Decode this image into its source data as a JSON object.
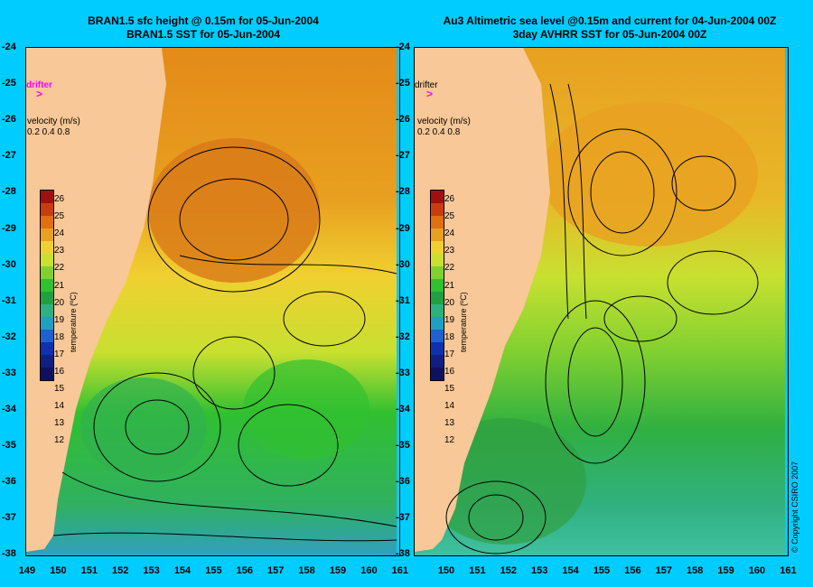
{
  "left_panel": {
    "title_line1": "BRAN1.5 sfc height @ 0.15m for 05-Jun-2004",
    "title_line2": "BRAN1.5 SST for 05-Jun-2004"
  },
  "right_panel": {
    "title_line1": "Au3 Altimetric sea level  @0.15m and current for 04-Jun-2004 00Z",
    "title_line2": "3day AVHRR SST for 05-Jun-2004 00Z"
  },
  "legend": {
    "drifter_label": "drifter",
    "velocity_label": "velocity (m/s)",
    "velocity_values": "0.2 0.4 0.8"
  },
  "colorbar": {
    "unit_label": "temperature (ºC)",
    "ticks": [
      "26",
      "25",
      "24",
      "23",
      "22",
      "21",
      "20",
      "19",
      "18",
      "17",
      "16",
      "15",
      "14",
      "13",
      "12"
    ],
    "colors": [
      "#a01010",
      "#c83c10",
      "#e07010",
      "#e8a020",
      "#f0d030",
      "#c8e030",
      "#80d030",
      "#30c030",
      "#20a040",
      "#30b080",
      "#20a0c0",
      "#2060d0",
      "#1030b0",
      "#102080",
      "#101060"
    ]
  },
  "y_axis": [
    "-24",
    "-25",
    "-26",
    "-27",
    "-28",
    "-29",
    "-30",
    "-31",
    "-32",
    "-33",
    "-34",
    "-35",
    "-36",
    "-37",
    "-38"
  ],
  "x_axis_left": [
    "149",
    "150",
    "151",
    "152",
    "153",
    "154",
    "155",
    "156",
    "157",
    "158",
    "159",
    "160",
    "161"
  ],
  "x_axis_right": [
    "150",
    "151",
    "152",
    "153",
    "154",
    "155",
    "156",
    "157",
    "158",
    "159",
    "160",
    "161"
  ],
  "copyright": "© Copyright CSIRO 2007",
  "colors": {
    "background": "#00ccff",
    "land": "#f8c898",
    "drifter": "#ff00ff"
  }
}
